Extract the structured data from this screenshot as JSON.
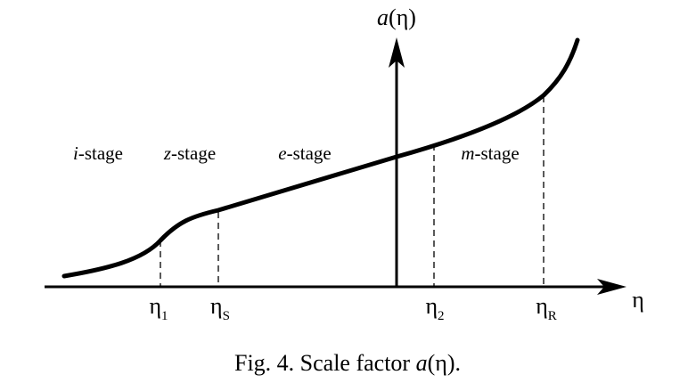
{
  "axes": {
    "y_label": {
      "var": "a",
      "arg": "(η)"
    },
    "x_label": "η"
  },
  "stages": [
    {
      "var": "i",
      "text": "-stage"
    },
    {
      "var": "z",
      "text": "-stage"
    },
    {
      "var": "e",
      "text": "-stage"
    },
    {
      "var": "m",
      "text": "-stage"
    }
  ],
  "time_marks": [
    {
      "symbol": "η",
      "subscript": "1"
    },
    {
      "symbol": "η",
      "subscript": "S"
    },
    {
      "symbol": "η",
      "subscript": "2"
    },
    {
      "symbol": "η",
      "subscript": "R"
    }
  ],
  "caption": {
    "prefix": "Fig. 4. Scale factor ",
    "var": "a",
    "suffix": "(η)."
  }
}
